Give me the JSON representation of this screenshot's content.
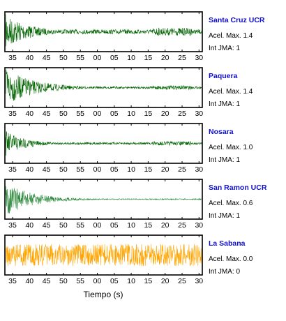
{
  "chart_data": {
    "type": "line",
    "xlabel": "Tiempo (s)",
    "tick_labels": [
      "35",
      "40",
      "45",
      "50",
      "55",
      "00",
      "05",
      "10",
      "15",
      "20",
      "25",
      "30"
    ],
    "series": [
      {
        "name": "Santa Cruz UCR",
        "accel_label": "Acel. Max. 1.4",
        "int_label": "Int JMA: 1",
        "color": "#006400",
        "initial_amplitude": 0.95,
        "decay": 0.12,
        "floor": 0.12,
        "late_burst": 0.15
      },
      {
        "name": "Paquera",
        "accel_label": "Acel. Max. 1.4",
        "int_label": "Int JMA: 1",
        "color": "#006400",
        "initial_amplitude": 1.0,
        "decay": 0.15,
        "floor": 0.06,
        "late_burst": 0.08
      },
      {
        "name": "Nosara",
        "accel_label": "Acel. Max. 1.0",
        "int_label": "Int JMA: 1",
        "color": "#006400",
        "initial_amplitude": 0.7,
        "decay": 0.1,
        "floor": 0.06,
        "late_burst": 0.08
      },
      {
        "name": "San Ramon UCR",
        "accel_label": "Acel. Max. 0.6",
        "int_label": "Int JMA: 1",
        "color": "#2e8b3e",
        "initial_amplitude": 0.9,
        "decay": 0.14,
        "floor": 0.03,
        "late_burst": 0.0
      },
      {
        "name": "La Sabana",
        "accel_label": "Acel. Max. 0.0",
        "int_label": "Int JMA: 0",
        "color": "#ffa500",
        "initial_amplitude": 0.6,
        "decay": 0.0,
        "floor": 0.6,
        "late_burst": 0.0
      }
    ]
  }
}
